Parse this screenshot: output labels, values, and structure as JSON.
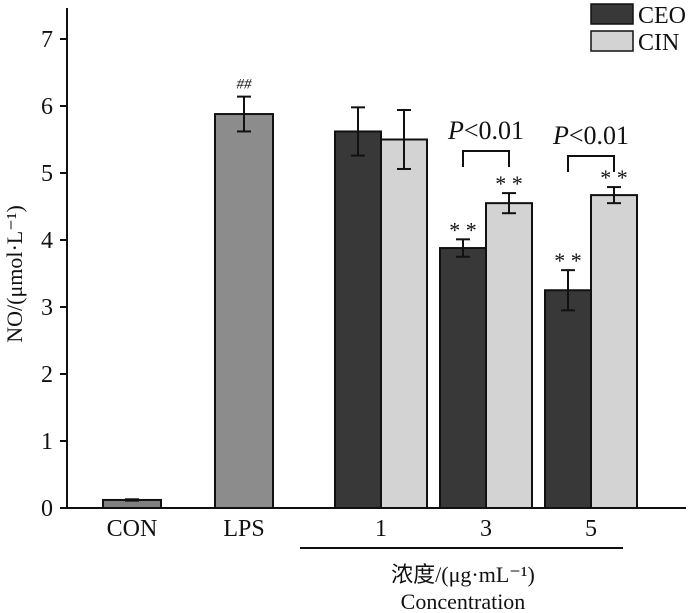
{
  "chart_data": {
    "type": "bar",
    "title": "",
    "ylabel": "NO/(μmol·L⁻¹)",
    "xlabel_cn": "浓度/(μg·mL⁻¹)",
    "xlabel_en": "Concentration",
    "ylim": [
      0,
      7.5
    ],
    "yticks": [
      0,
      1,
      2,
      3,
      4,
      5,
      6,
      7
    ],
    "ytick_labels": [
      "0",
      "1",
      "2",
      "3",
      "4",
      "5",
      "6",
      "7"
    ],
    "grid": false,
    "legend_position": "top-right",
    "legend": [
      {
        "name": "CEO",
        "color": "#383838"
      },
      {
        "name": "CIN",
        "color": "#d3d3d3"
      }
    ],
    "groups": [
      {
        "label": "CON",
        "bars": [
          {
            "series": "control",
            "value": 0.12,
            "error": 0.01,
            "color": "#808080",
            "annotation": ""
          }
        ]
      },
      {
        "label": "LPS",
        "bars": [
          {
            "series": "LPS",
            "value": 5.88,
            "error": 0.26,
            "color": "#8c8c8c",
            "annotation": "##"
          }
        ]
      },
      {
        "label": "1",
        "bars": [
          {
            "series": "CEO",
            "value": 5.62,
            "error": 0.36,
            "color": "#383838",
            "annotation": ""
          },
          {
            "series": "CIN",
            "value": 5.5,
            "error": 0.44,
            "color": "#d3d3d3",
            "annotation": ""
          }
        ]
      },
      {
        "label": "3",
        "bars": [
          {
            "series": "CEO",
            "value": 3.88,
            "error": 0.13,
            "color": "#383838",
            "annotation": "* *"
          },
          {
            "series": "CIN",
            "value": 4.55,
            "error": 0.15,
            "color": "#d3d3d3",
            "annotation": "* *"
          }
        ]
      },
      {
        "label": "5",
        "bars": [
          {
            "series": "CEO",
            "value": 3.25,
            "error": 0.3,
            "color": "#383838",
            "annotation": "* *"
          },
          {
            "series": "CIN",
            "value": 4.67,
            "error": 0.12,
            "color": "#d3d3d3",
            "annotation": "* *"
          }
        ]
      }
    ],
    "significance_brackets": [
      {
        "group": "3",
        "label_italic": "P",
        "label_rest": "<0.01"
      },
      {
        "group": "5",
        "label_italic": "P",
        "label_rest": "<0.01"
      }
    ]
  }
}
